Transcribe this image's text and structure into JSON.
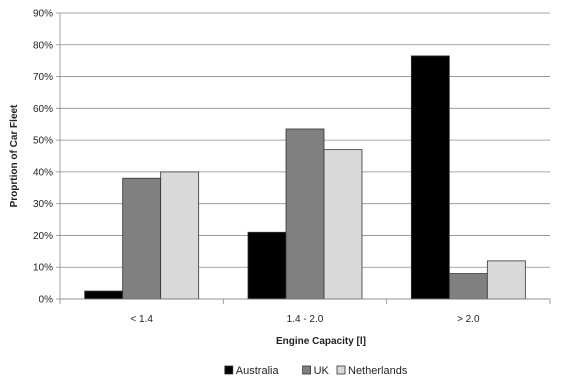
{
  "chart_data": {
    "type": "bar",
    "title": "",
    "xlabel": "Engine Capacity [l]",
    "ylabel": "Proprtion of Car Fleet",
    "categories": [
      "< 1.4",
      "1.4 - 2.0",
      "> 2.0"
    ],
    "ylim": [
      0,
      90
    ],
    "yticks": [
      "0%",
      "10%",
      "20%",
      "30%",
      "40%",
      "50%",
      "60%",
      "70%",
      "80%",
      "90%"
    ],
    "grid": true,
    "legend_position": "bottom",
    "series": [
      {
        "name": "Australia",
        "values": [
          2.5,
          21,
          76.5
        ],
        "color": "#000000"
      },
      {
        "name": "UK",
        "values": [
          38,
          53.5,
          8
        ],
        "color": "#808080"
      },
      {
        "name": "Netherlands",
        "values": [
          40,
          47,
          12
        ],
        "color": "#d9d9d9"
      }
    ]
  }
}
